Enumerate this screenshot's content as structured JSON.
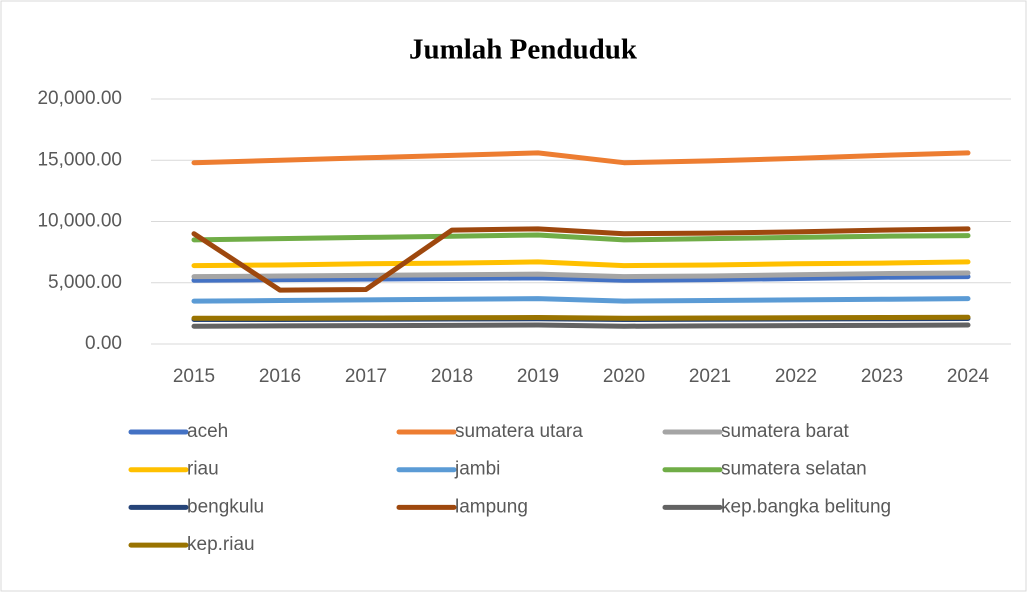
{
  "chart_data": {
    "type": "line",
    "title": "Jumlah Penduduk",
    "x": [
      "2015",
      "2016",
      "2017",
      "2018",
      "2019",
      "2020",
      "2021",
      "2022",
      "2023",
      "2024"
    ],
    "ylim": [
      0,
      20000
    ],
    "yticks": [
      {
        "value": 0,
        "label": "0.00"
      },
      {
        "value": 5000,
        "label": "5,000.00"
      },
      {
        "value": 10000,
        "label": "10,000.00"
      },
      {
        "value": 15000,
        "label": "15,000.00"
      },
      {
        "value": 20000,
        "label": "20,000.00"
      }
    ],
    "grid": true,
    "legend": "bottom",
    "series": [
      {
        "name": "aceh",
        "color": "#4472c4",
        "values": [
          5200,
          5250,
          5300,
          5350,
          5400,
          5200,
          5250,
          5350,
          5450,
          5500
        ]
      },
      {
        "name": "sumatera utara",
        "color": "#ed7d31",
        "values": [
          14800,
          15000,
          15200,
          15400,
          15600,
          14800,
          14950,
          15150,
          15400,
          15600
        ]
      },
      {
        "name": "sumatera barat",
        "color": "#a5a5a5",
        "values": [
          5500,
          5550,
          5600,
          5650,
          5700,
          5500,
          5550,
          5650,
          5750,
          5800
        ]
      },
      {
        "name": "riau",
        "color": "#ffc000",
        "values": [
          6400,
          6450,
          6550,
          6600,
          6700,
          6400,
          6450,
          6550,
          6600,
          6700
        ]
      },
      {
        "name": "jambi",
        "color": "#5b9bd5",
        "values": [
          3500,
          3550,
          3600,
          3650,
          3700,
          3500,
          3550,
          3600,
          3650,
          3700
        ]
      },
      {
        "name": "sumatera selatan",
        "color": "#70ad47",
        "values": [
          8500,
          8600,
          8700,
          8800,
          8900,
          8500,
          8600,
          8700,
          8800,
          8850
        ]
      },
      {
        "name": "bengkulu",
        "color": "#264478",
        "values": [
          2000,
          2000,
          2020,
          2040,
          2060,
          2000,
          2020,
          2040,
          2060,
          2080
        ]
      },
      {
        "name": "lampung",
        "color": "#9e480e",
        "values": [
          9000,
          4400,
          4450,
          9300,
          9400,
          9000,
          9050,
          9150,
          9300,
          9400
        ]
      },
      {
        "name": "kep.bangka belitung",
        "color": "#636363",
        "values": [
          1450,
          1480,
          1500,
          1520,
          1550,
          1450,
          1480,
          1500,
          1520,
          1550
        ]
      },
      {
        "name": "kep.riau",
        "color": "#997300",
        "values": [
          2100,
          2100,
          2120,
          2140,
          2160,
          2100,
          2120,
          2140,
          2160,
          2180
        ]
      }
    ]
  }
}
